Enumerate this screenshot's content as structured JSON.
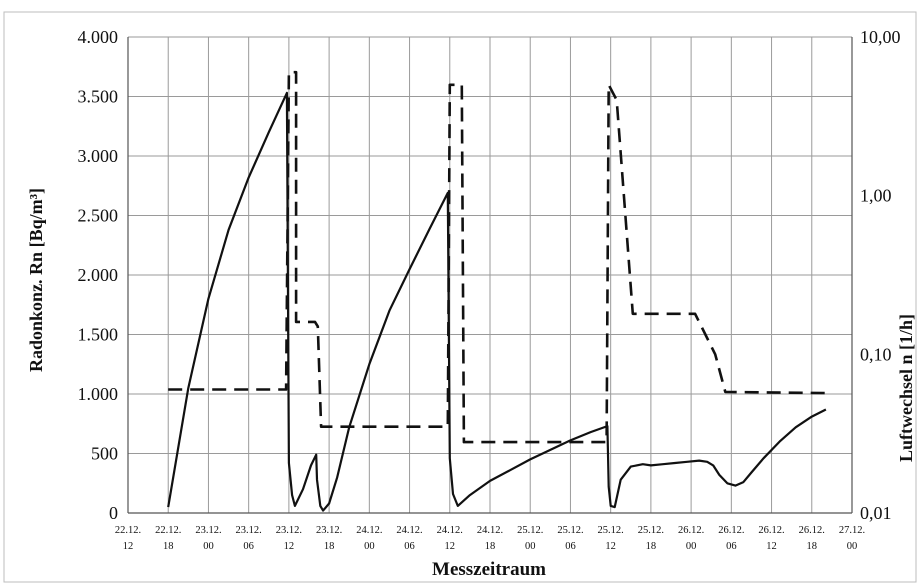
{
  "chart_data": {
    "type": "line",
    "title": "",
    "xlabel": "Messzeitraum",
    "ylabel_left": "Radonkonz. Rn [Bq/m³]",
    "ylabel_right": "Luftwechsel n [1/h]",
    "grid": true,
    "legend": "none",
    "x_tick_labels": [
      [
        "22.12.",
        "12"
      ],
      [
        "22.12.",
        "18"
      ],
      [
        "23.12.",
        "00"
      ],
      [
        "23.12.",
        "06"
      ],
      [
        "23.12.",
        "12"
      ],
      [
        "23.12.",
        "18"
      ],
      [
        "24.12.",
        "00"
      ],
      [
        "24.12.",
        "06"
      ],
      [
        "24.12.",
        "12"
      ],
      [
        "24.12.",
        "18"
      ],
      [
        "25.12.",
        "00"
      ],
      [
        "25.12.",
        "06"
      ],
      [
        "25.12.",
        "12"
      ],
      [
        "25.12.",
        "18"
      ],
      [
        "26.12.",
        "00"
      ],
      [
        "26.12.",
        "06"
      ],
      [
        "26.12.",
        "12"
      ],
      [
        "26.12.",
        "18"
      ],
      [
        "27.12.",
        "00"
      ]
    ],
    "y_left": {
      "min": 0,
      "max": 4000,
      "ticks": [
        0,
        500,
        1000,
        1500,
        2000,
        2500,
        3000,
        3500,
        4000
      ],
      "tick_labels": [
        "0",
        "500",
        "1.000",
        "1.500",
        "2.000",
        "2.500",
        "3.000",
        "3.500",
        "4.000"
      ]
    },
    "y_right": {
      "scale": "log",
      "min": 0.01,
      "max": 10,
      "ticks": [
        0.01,
        0.1,
        1,
        10
      ],
      "tick_labels": [
        "0,01",
        "0,10",
        "1,00",
        "10,00"
      ]
    },
    "series": [
      {
        "axis": "left",
        "style": "solid",
        "color": "#111111",
        "points": [
          [
            1,
            50
          ],
          [
            1.5,
            1050
          ],
          [
            2,
            1800
          ],
          [
            2.5,
            2380
          ],
          [
            3,
            2820
          ],
          [
            3.5,
            3200
          ],
          [
            3.95,
            3530
          ],
          [
            4.0,
            420
          ],
          [
            4.08,
            150
          ],
          [
            4.15,
            60
          ],
          [
            4.35,
            200
          ],
          [
            4.55,
            400
          ],
          [
            4.68,
            490
          ],
          [
            4.7,
            280
          ],
          [
            4.78,
            60
          ],
          [
            4.85,
            20
          ],
          [
            5.0,
            80
          ],
          [
            5.2,
            300
          ],
          [
            5.5,
            720
          ],
          [
            6,
            1250
          ],
          [
            6.5,
            1700
          ],
          [
            7,
            2050
          ],
          [
            7.5,
            2390
          ],
          [
            7.95,
            2690
          ],
          [
            8.0,
            460
          ],
          [
            8.08,
            160
          ],
          [
            8.2,
            60
          ],
          [
            8.5,
            150
          ],
          [
            9,
            270
          ],
          [
            9.5,
            360
          ],
          [
            10,
            450
          ],
          [
            10.5,
            530
          ],
          [
            11,
            610
          ],
          [
            11.5,
            680
          ],
          [
            11.92,
            730
          ],
          [
            11.95,
            220
          ],
          [
            12.0,
            60
          ],
          [
            12.1,
            50
          ],
          [
            12.25,
            280
          ],
          [
            12.5,
            390
          ],
          [
            12.8,
            410
          ],
          [
            13.0,
            400
          ],
          [
            13.3,
            410
          ],
          [
            13.6,
            420
          ],
          [
            13.9,
            430
          ],
          [
            14.2,
            440
          ],
          [
            14.4,
            430
          ],
          [
            14.55,
            400
          ],
          [
            14.7,
            320
          ],
          [
            14.9,
            250
          ],
          [
            15.1,
            230
          ],
          [
            15.3,
            260
          ],
          [
            15.5,
            340
          ],
          [
            15.8,
            460
          ],
          [
            16.2,
            600
          ],
          [
            16.6,
            720
          ],
          [
            17.0,
            810
          ],
          [
            17.35,
            870
          ]
        ]
      },
      {
        "axis": "right",
        "style": "dashed",
        "color": "#111111",
        "points": [
          [
            1,
            0.06
          ],
          [
            3.93,
            0.06
          ],
          [
            4.0,
            6
          ],
          [
            4.18,
            6
          ],
          [
            4.18,
            0.16
          ],
          [
            4.65,
            0.16
          ],
          [
            4.72,
            0.15
          ],
          [
            4.8,
            0.035
          ],
          [
            7.95,
            0.035
          ],
          [
            8.0,
            5
          ],
          [
            8.3,
            5
          ],
          [
            8.35,
            0.028
          ],
          [
            11.9,
            0.028
          ],
          [
            11.95,
            5
          ],
          [
            12.15,
            4
          ],
          [
            12.55,
            0.18
          ],
          [
            14.1,
            0.18
          ],
          [
            14.6,
            0.1
          ],
          [
            14.85,
            0.058
          ],
          [
            17.35,
            0.057
          ]
        ]
      }
    ]
  }
}
